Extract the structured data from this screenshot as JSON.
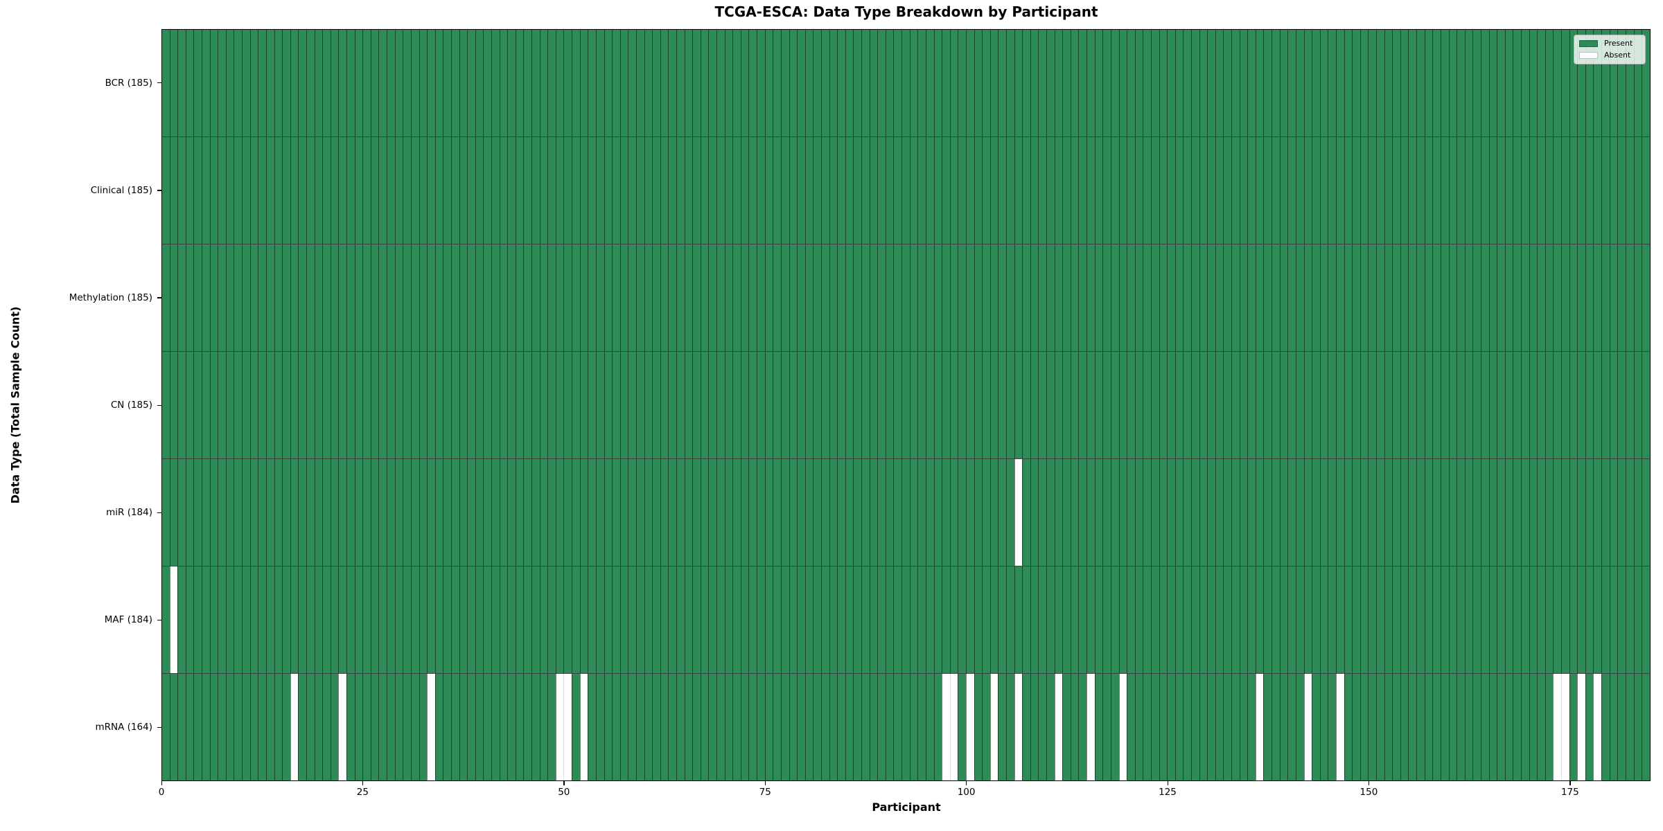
{
  "chart_data": {
    "type": "heatmap",
    "title": "TCGA-ESCA: Data Type Breakdown by Participant",
    "xlabel": "Participant",
    "ylabel": "Data Type (Total Sample Count)",
    "n_participants": 185,
    "xlim": [
      0,
      185
    ],
    "x_ticks": [
      0,
      25,
      50,
      75,
      100,
      125,
      150,
      175
    ],
    "grid": false,
    "legend": {
      "position": "upper right",
      "entries": [
        {
          "label": "Present",
          "color": "#2e8b57"
        },
        {
          "label": "Absent",
          "color": "#ffffff"
        }
      ]
    },
    "colors": {
      "present": "#2e8b57",
      "absent": "#ffffff",
      "bar_edge": "rgba(0,0,0,0.5)",
      "absent_edge": "rgba(0,0,0,0.12)"
    },
    "rows": [
      {
        "label": "BCR (185)",
        "data_type": "BCR",
        "total_samples": 185,
        "absent_participants": []
      },
      {
        "label": "Clinical (185)",
        "data_type": "Clinical",
        "total_samples": 185,
        "absent_participants": []
      },
      {
        "label": "Methylation (185)",
        "data_type": "Methylation",
        "total_samples": 185,
        "absent_participants": []
      },
      {
        "label": "CN (185)",
        "data_type": "CN",
        "total_samples": 185,
        "absent_participants": []
      },
      {
        "label": "miR (184)",
        "data_type": "miR",
        "total_samples": 184,
        "absent_participants": [
          106
        ]
      },
      {
        "label": "MAF (184)",
        "data_type": "MAF",
        "total_samples": 184,
        "absent_participants": [
          1
        ]
      },
      {
        "label": "mRNA (164)",
        "data_type": "mRNA",
        "total_samples": 164,
        "absent_participants": [
          16,
          22,
          33,
          49,
          50,
          52,
          97,
          98,
          100,
          103,
          106,
          111,
          115,
          119,
          136,
          142,
          146,
          173,
          174,
          176,
          178
        ]
      }
    ]
  }
}
